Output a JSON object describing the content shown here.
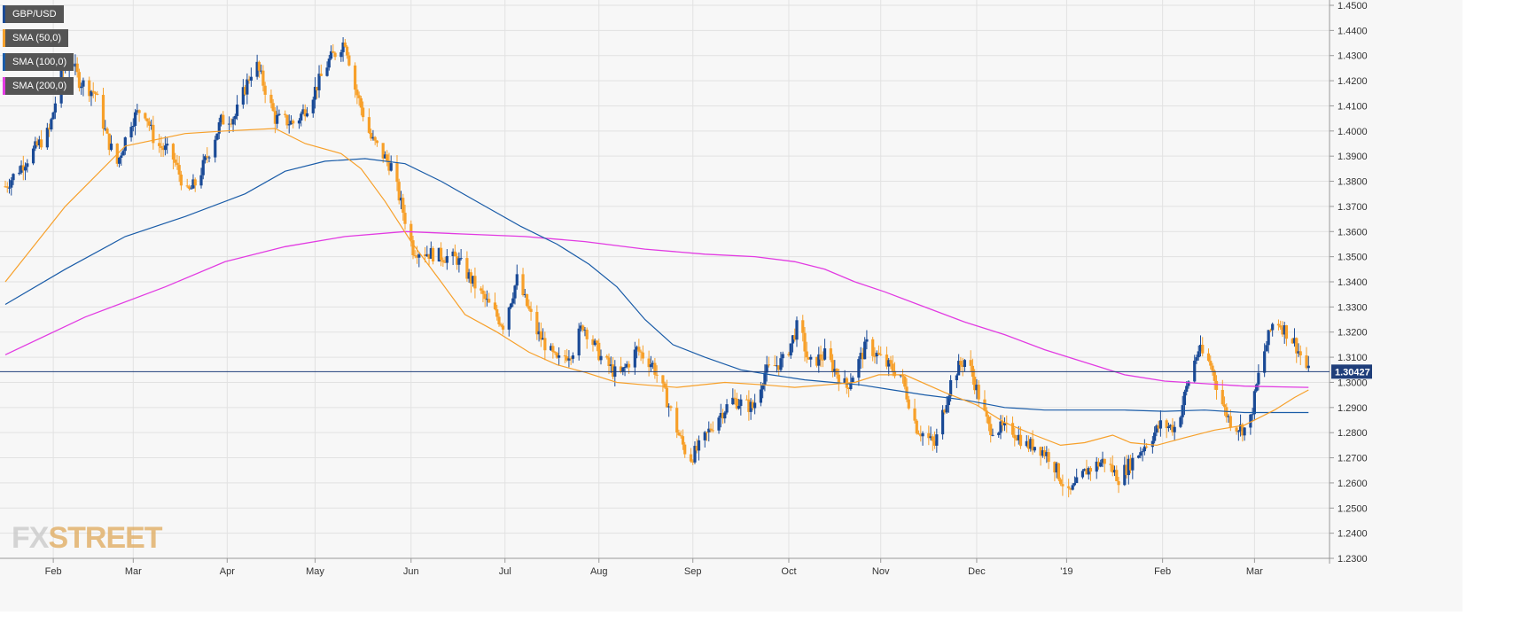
{
  "chart_data": {
    "type": "candlestick",
    "symbol": "GBP/USD",
    "last_price": "1.30427",
    "y_axis_side": "right",
    "ylim": [
      1.23,
      1.45
    ],
    "y_ticks": [
      "1.4500",
      "1.4400",
      "1.4300",
      "1.4200",
      "1.4100",
      "1.4000",
      "1.3900",
      "1.3800",
      "1.3700",
      "1.3600",
      "1.3500",
      "1.3400",
      "1.3300",
      "1.3200",
      "1.3100",
      "1.3000",
      "1.2900",
      "1.2800",
      "1.2700",
      "1.2600",
      "1.2500",
      "1.2400",
      "1.2300"
    ],
    "x_ticks": [
      "Feb",
      "Mar",
      "Apr",
      "May",
      "Jun",
      "Jul",
      "Aug",
      "Sep",
      "Oct",
      "Nov",
      "Dec",
      "'19",
      "Feb",
      "Mar"
    ],
    "grid": true,
    "legend_placement": "top-left",
    "colors": {
      "up": "#1a4a96",
      "down": "#f7a02a",
      "sma50": "#f7a02a",
      "sma100": "#1a5ca8",
      "sma200": "#e23be2",
      "last_price_line": "#1f3e7a",
      "legend_bg": "#555555"
    },
    "legend": [
      {
        "label": "GBP/USD",
        "color": "#1a4a96"
      },
      {
        "label": "SMA (50,0)",
        "color": "#f7a02a"
      },
      {
        "label": "SMA (100,0)",
        "color": "#1a5ca8"
      },
      {
        "label": "SMA (200,0)",
        "color": "#e23be2"
      }
    ],
    "price_anchors": [
      [
        0,
        1.378
      ],
      [
        12,
        1.39
      ],
      [
        22,
        1.4
      ],
      [
        28,
        1.423
      ],
      [
        33,
        1.428
      ],
      [
        37,
        1.42
      ],
      [
        45,
        1.415
      ],
      [
        51,
        1.397
      ],
      [
        56,
        1.387
      ],
      [
        63,
        1.404
      ],
      [
        69,
        1.41
      ],
      [
        75,
        1.395
      ],
      [
        83,
        1.391
      ],
      [
        91,
        1.375
      ],
      [
        96,
        1.38
      ],
      [
        108,
        1.404
      ],
      [
        115,
        1.406
      ],
      [
        125,
        1.428
      ],
      [
        129,
        1.419
      ],
      [
        135,
        1.405
      ],
      [
        145,
        1.403
      ],
      [
        151,
        1.41
      ],
      [
        162,
        1.428
      ],
      [
        170,
        1.436
      ],
      [
        175,
        1.417
      ],
      [
        183,
        1.397
      ],
      [
        193,
        1.386
      ],
      [
        204,
        1.353
      ],
      [
        214,
        1.351
      ],
      [
        226,
        1.349
      ],
      [
        238,
        1.335
      ],
      [
        249,
        1.323
      ],
      [
        256,
        1.341
      ],
      [
        266,
        1.32
      ],
      [
        276,
        1.308
      ],
      [
        284,
        1.313
      ],
      [
        289,
        1.323
      ],
      [
        298,
        1.31
      ],
      [
        307,
        1.302
      ],
      [
        316,
        1.313
      ],
      [
        324,
        1.307
      ],
      [
        331,
        1.293
      ],
      [
        337,
        1.279
      ],
      [
        342,
        1.269
      ],
      [
        348,
        1.275
      ],
      [
        356,
        1.286
      ],
      [
        364,
        1.293
      ],
      [
        374,
        1.29
      ],
      [
        380,
        1.304
      ],
      [
        390,
        1.309
      ],
      [
        397,
        1.324
      ],
      [
        402,
        1.307
      ],
      [
        410,
        1.311
      ],
      [
        421,
        1.298
      ],
      [
        431,
        1.315
      ],
      [
        441,
        1.307
      ],
      [
        448,
        1.303
      ],
      [
        456,
        1.282
      ],
      [
        465,
        1.275
      ],
      [
        474,
        1.303
      ],
      [
        481,
        1.31
      ],
      [
        492,
        1.282
      ],
      [
        504,
        1.281
      ],
      [
        511,
        1.275
      ],
      [
        516,
        1.275
      ],
      [
        523,
        1.27
      ],
      [
        532,
        1.255
      ],
      [
        541,
        1.265
      ],
      [
        550,
        1.269
      ],
      [
        557,
        1.262
      ],
      [
        565,
        1.27
      ],
      [
        570,
        1.275
      ],
      [
        578,
        1.283
      ],
      [
        586,
        1.282
      ],
      [
        593,
        1.304
      ],
      [
        597,
        1.313
      ],
      [
        603,
        1.307
      ],
      [
        610,
        1.289
      ],
      [
        614,
        1.283
      ],
      [
        622,
        1.281
      ],
      [
        628,
        1.307
      ],
      [
        635,
        1.326
      ],
      [
        645,
        1.316
      ],
      [
        649,
        1.309
      ],
      [
        652,
        1.304
      ]
    ],
    "sma50_series": [
      [
        0,
        1.34
      ],
      [
        30,
        1.37
      ],
      [
        60,
        1.394
      ],
      [
        90,
        1.399
      ],
      [
        110,
        1.4
      ],
      [
        135,
        1.401
      ],
      [
        150,
        1.395
      ],
      [
        168,
        1.391
      ],
      [
        178,
        1.385
      ],
      [
        190,
        1.372
      ],
      [
        203,
        1.356
      ],
      [
        218,
        1.34
      ],
      [
        230,
        1.327
      ],
      [
        246,
        1.32
      ],
      [
        262,
        1.312
      ],
      [
        276,
        1.307
      ],
      [
        290,
        1.304
      ],
      [
        306,
        1.3
      ],
      [
        320,
        1.299
      ],
      [
        336,
        1.298
      ],
      [
        360,
        1.3
      ],
      [
        380,
        1.299
      ],
      [
        395,
        1.298
      ],
      [
        410,
        1.299
      ],
      [
        425,
        1.3
      ],
      [
        437,
        1.303
      ],
      [
        450,
        1.303
      ],
      [
        470,
        1.296
      ],
      [
        486,
        1.291
      ],
      [
        500,
        1.284
      ],
      [
        515,
        1.279
      ],
      [
        528,
        1.275
      ],
      [
        540,
        1.276
      ],
      [
        554,
        1.279
      ],
      [
        563,
        1.276
      ],
      [
        576,
        1.275
      ],
      [
        590,
        1.278
      ],
      [
        605,
        1.281
      ],
      [
        620,
        1.283
      ],
      [
        635,
        1.289
      ],
      [
        645,
        1.294
      ],
      [
        652,
        1.297
      ]
    ],
    "sma100_series": [
      [
        0,
        1.331
      ],
      [
        30,
        1.345
      ],
      [
        60,
        1.358
      ],
      [
        90,
        1.366
      ],
      [
        120,
        1.375
      ],
      [
        140,
        1.384
      ],
      [
        160,
        1.388
      ],
      [
        180,
        1.389
      ],
      [
        200,
        1.387
      ],
      [
        218,
        1.38
      ],
      [
        238,
        1.371
      ],
      [
        258,
        1.362
      ],
      [
        276,
        1.355
      ],
      [
        292,
        1.347
      ],
      [
        306,
        1.338
      ],
      [
        320,
        1.325
      ],
      [
        334,
        1.315
      ],
      [
        350,
        1.31
      ],
      [
        368,
        1.305
      ],
      [
        383,
        1.303
      ],
      [
        400,
        1.301
      ],
      [
        414,
        1.3
      ],
      [
        428,
        1.299
      ],
      [
        444,
        1.297
      ],
      [
        460,
        1.295
      ],
      [
        480,
        1.293
      ],
      [
        500,
        1.29
      ],
      [
        520,
        1.289
      ],
      [
        540,
        1.289
      ],
      [
        560,
        1.289
      ],
      [
        580,
        1.2885
      ],
      [
        600,
        1.289
      ],
      [
        620,
        1.288
      ],
      [
        640,
        1.288
      ],
      [
        652,
        1.288
      ]
    ],
    "sma200_series": [
      [
        0,
        1.311
      ],
      [
        40,
        1.326
      ],
      [
        80,
        1.338
      ],
      [
        110,
        1.348
      ],
      [
        140,
        1.354
      ],
      [
        170,
        1.358
      ],
      [
        200,
        1.36
      ],
      [
        230,
        1.359
      ],
      [
        260,
        1.358
      ],
      [
        290,
        1.356
      ],
      [
        320,
        1.353
      ],
      [
        350,
        1.351
      ],
      [
        375,
        1.35
      ],
      [
        395,
        1.348
      ],
      [
        410,
        1.345
      ],
      [
        425,
        1.34
      ],
      [
        440,
        1.336
      ],
      [
        460,
        1.33
      ],
      [
        480,
        1.324
      ],
      [
        500,
        1.319
      ],
      [
        520,
        1.313
      ],
      [
        540,
        1.308
      ],
      [
        560,
        1.303
      ],
      [
        580,
        1.3005
      ],
      [
        600,
        1.2995
      ],
      [
        620,
        1.2985
      ],
      [
        640,
        1.2982
      ],
      [
        652,
        1.298
      ]
    ],
    "x_tick_days": [
      [
        24,
        "Feb"
      ],
      [
        64,
        "Mar"
      ],
      [
        111,
        "Apr"
      ],
      [
        155,
        "May"
      ],
      [
        203,
        "Jun"
      ],
      [
        250,
        "Jul"
      ],
      [
        297,
        "Aug"
      ],
      [
        344,
        "Sep"
      ],
      [
        392,
        "Oct"
      ],
      [
        438,
        "Nov"
      ],
      [
        486,
        "Dec"
      ],
      [
        531,
        "'19"
      ],
      [
        579,
        "Feb"
      ],
      [
        625,
        "Mar"
      ]
    ],
    "total_days": 655
  }
}
